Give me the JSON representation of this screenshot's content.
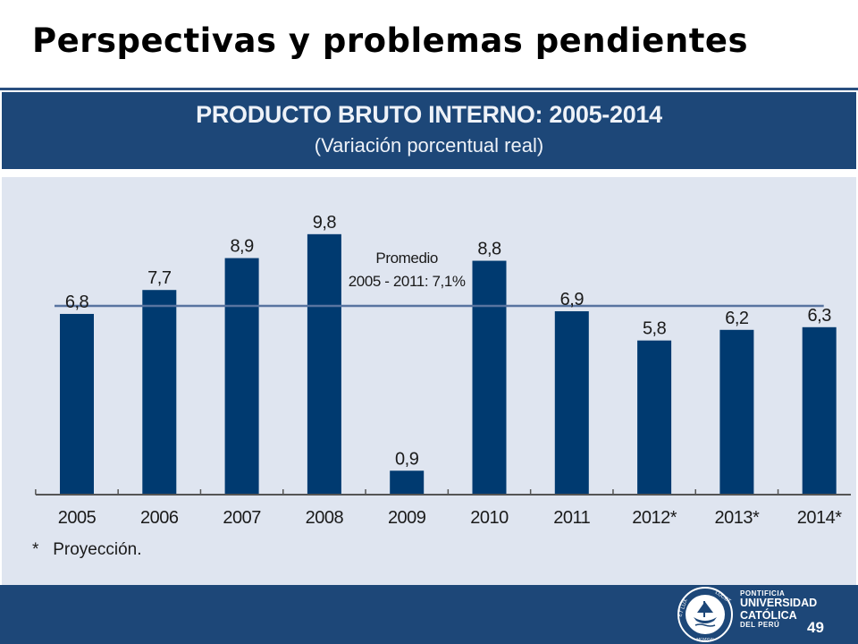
{
  "slide": {
    "title": "Perspectivas y problemas pendientes",
    "page_number": "49"
  },
  "footer": {
    "logo_lines": [
      "PONTIFICIA",
      "UNIVERSIDAD",
      "CATÓLICA",
      "DEL PERÚ"
    ],
    "seal_motto_left": "ET LUX",
    "seal_motto_right": "LUCET",
    "seal_year": "MCMXVII"
  },
  "colors": {
    "bar": "#003a70",
    "header_band": "#1d4778",
    "plot_background": "#dfe5f0",
    "average_line": "#5874a0",
    "text": "#1a1a1a"
  },
  "chart_data": {
    "type": "bar",
    "title": "PRODUCTO BRUTO INTERNO: 2005-2014",
    "subtitle": "(Variación porcentual real)",
    "categories": [
      "2005",
      "2006",
      "2007",
      "2008",
      "2009",
      "2010",
      "2011",
      "2012*",
      "2013*",
      "2014*"
    ],
    "values": [
      6.8,
      7.7,
      8.9,
      9.8,
      0.9,
      8.8,
      6.9,
      5.8,
      6.2,
      6.3
    ],
    "value_labels": [
      "6,8",
      "7,7",
      "8,9",
      "9,8",
      "0,9",
      "8,8",
      "6,9",
      "5,8",
      "6,2",
      "6,3"
    ],
    "reference_line": {
      "value": 7.1,
      "label_line1": "Promedio",
      "label_line2": "2005 - 2011: 7,1%"
    },
    "footnote": "*   Proyección.",
    "ylim": [
      0,
      10.4
    ],
    "grid": false,
    "legend": "none"
  }
}
